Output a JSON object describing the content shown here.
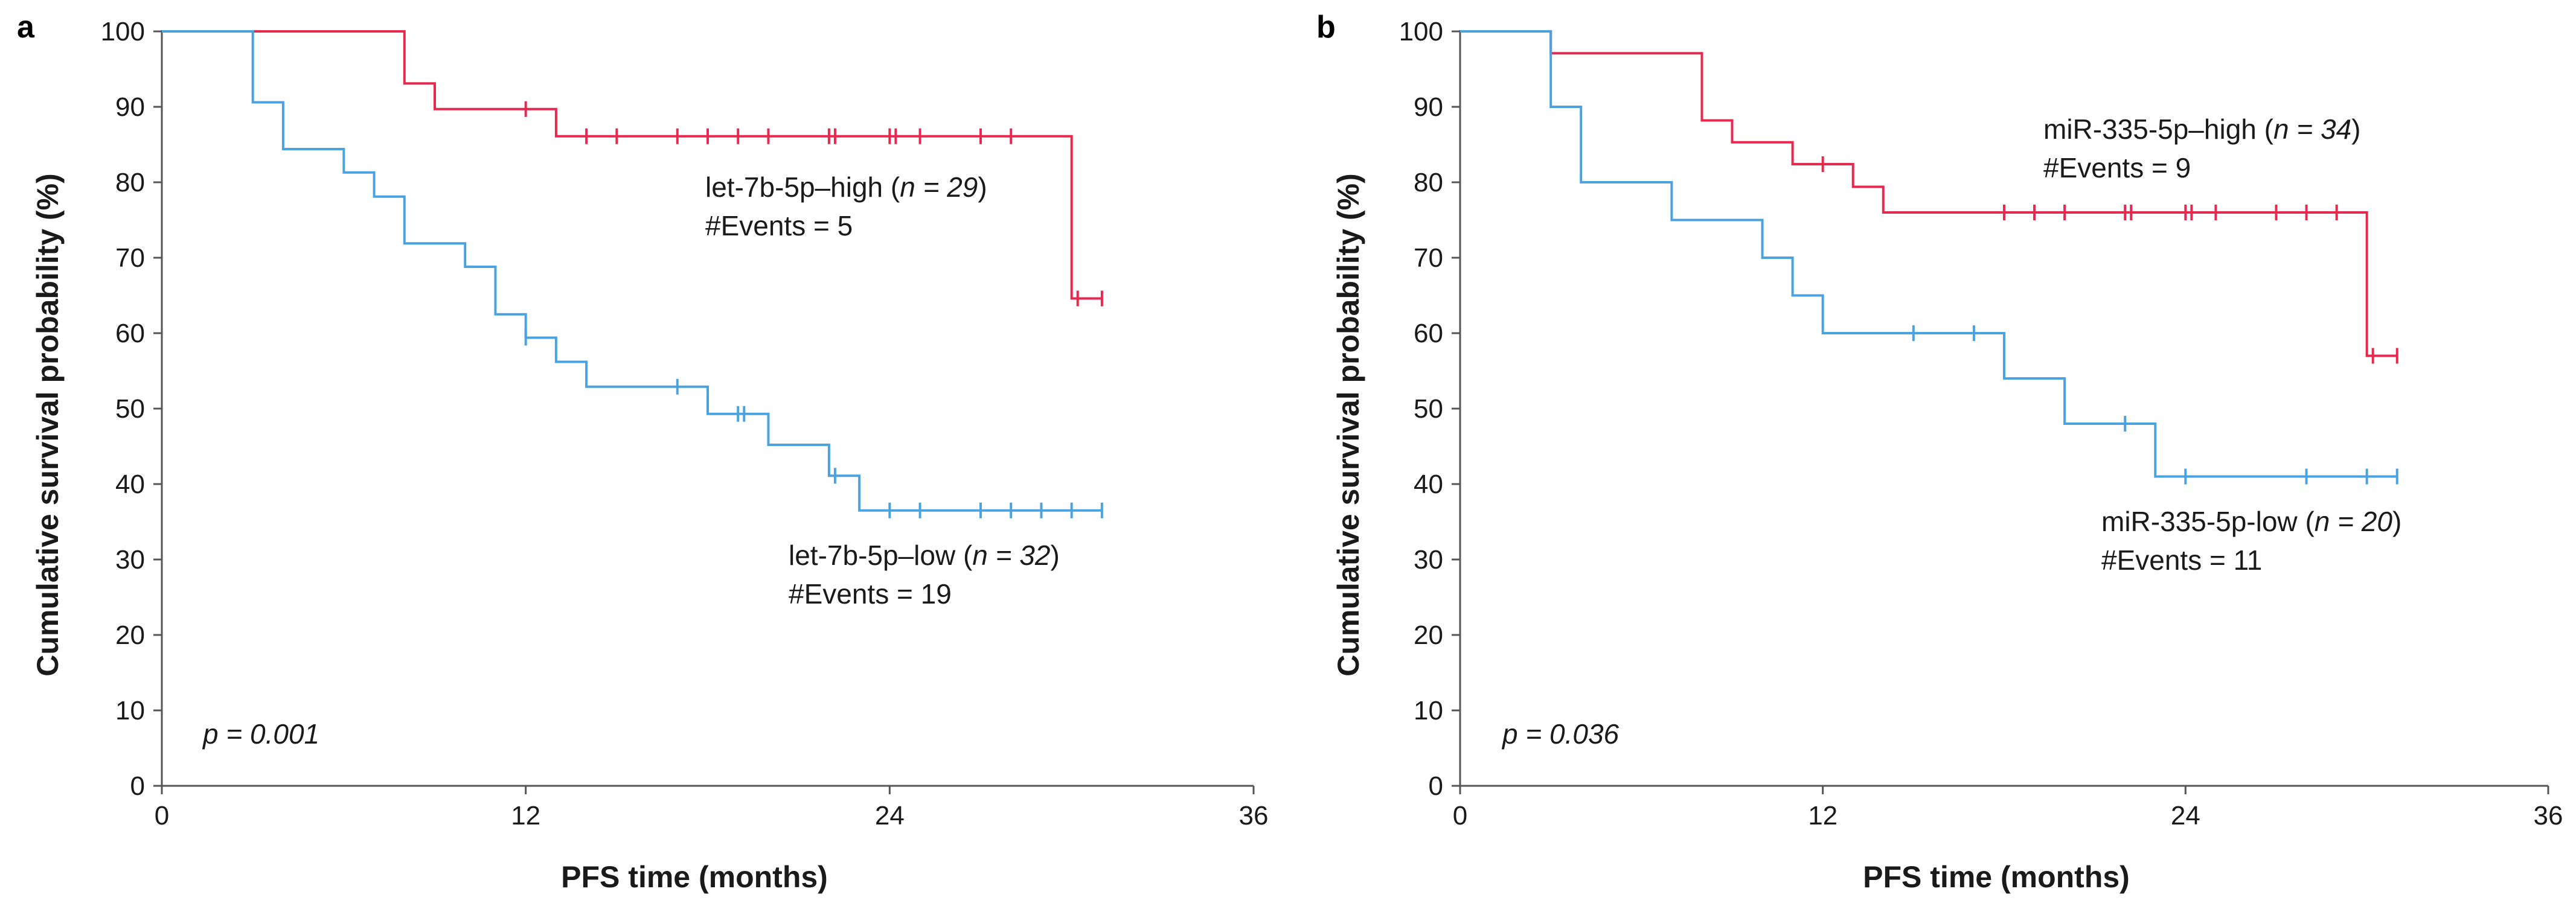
{
  "chart_data": [
    {
      "type": "line",
      "subtype": "kaplan-meier",
      "panel": "a",
      "xlabel": "PFS time (months)",
      "ylabel": "Cumulative survival probability (%)",
      "xlim": [
        0,
        36
      ],
      "ylim": [
        0,
        100
      ],
      "xticks": [
        0,
        12,
        24,
        36
      ],
      "yticks": [
        0,
        10,
        20,
        30,
        40,
        50,
        60,
        70,
        80,
        90,
        100
      ],
      "p_value": "p = 0.001",
      "series": [
        {
          "name": "let-7b-5p–high",
          "color": "#e8294f",
          "n": "29",
          "label": "let-7b-5p–high",
          "n_label": "n = 29",
          "events_label": "#Events = 5",
          "steps": [
            [
              0,
              100
            ],
            [
              8,
              93.1
            ],
            [
              9,
              89.7
            ],
            [
              13,
              86.1
            ],
            [
              30,
              64.6
            ],
            [
              31,
              64.6
            ]
          ],
          "censored": [
            [
              12,
              89.7
            ],
            [
              14,
              86.1
            ],
            [
              15,
              86.1
            ],
            [
              17,
              86.1
            ],
            [
              18,
              86.1
            ],
            [
              19,
              86.1
            ],
            [
              20,
              86.1
            ],
            [
              22,
              86.1
            ],
            [
              22.2,
              86.1
            ],
            [
              24,
              86.1
            ],
            [
              24.2,
              86.1
            ],
            [
              25,
              86.1
            ],
            [
              27,
              86.1
            ],
            [
              28,
              86.1
            ],
            [
              30.2,
              64.6
            ],
            [
              31,
              64.6
            ]
          ]
        },
        {
          "name": "let-7b-5p–low",
          "color": "#4aa3df",
          "n": "32",
          "label": "let-7b-5p–low",
          "n_label": "n = 32",
          "events_label": "#Events = 19",
          "steps": [
            [
              0,
              100
            ],
            [
              3,
              90.6
            ],
            [
              4,
              84.4
            ],
            [
              6,
              81.3
            ],
            [
              7,
              78.1
            ],
            [
              8,
              71.9
            ],
            [
              10,
              68.8
            ],
            [
              11,
              62.5
            ],
            [
              12,
              59.4
            ],
            [
              13,
              56.2
            ],
            [
              14,
              52.9
            ],
            [
              18,
              49.3
            ],
            [
              20,
              45.2
            ],
            [
              22,
              41.1
            ],
            [
              23,
              36.5
            ],
            [
              31,
              36.5
            ]
          ],
          "censored": [
            [
              12,
              59.4
            ],
            [
              17,
              52.9
            ],
            [
              19,
              49.3
            ],
            [
              19.2,
              49.3
            ],
            [
              22.2,
              41.1
            ],
            [
              24,
              36.5
            ],
            [
              25,
              36.5
            ],
            [
              27,
              36.5
            ],
            [
              28,
              36.5
            ],
            [
              29,
              36.5
            ],
            [
              30,
              36.5
            ],
            [
              31,
              36.5
            ]
          ]
        }
      ]
    },
    {
      "type": "line",
      "subtype": "kaplan-meier",
      "panel": "b",
      "xlabel": "PFS time (months)",
      "ylabel": "Cumulative survival probability (%)",
      "xlim": [
        0,
        36
      ],
      "ylim": [
        0,
        100
      ],
      "xticks": [
        0,
        12,
        24,
        36
      ],
      "yticks": [
        0,
        10,
        20,
        30,
        40,
        50,
        60,
        70,
        80,
        90,
        100
      ],
      "p_value": "p = 0.036",
      "series": [
        {
          "name": "miR-335-5p–high",
          "color": "#e8294f",
          "n": "34",
          "label": "miR-335-5p–high",
          "n_label": "n = 34",
          "events_label": "#Events = 9",
          "steps": [
            [
              0,
              100
            ],
            [
              3,
              97.1
            ],
            [
              8,
              88.2
            ],
            [
              9,
              85.3
            ],
            [
              11,
              82.4
            ],
            [
              13,
              79.4
            ],
            [
              14,
              76
            ],
            [
              30,
              57
            ],
            [
              31,
              57
            ]
          ],
          "censored": [
            [
              12,
              82.4
            ],
            [
              18,
              76
            ],
            [
              19,
              76
            ],
            [
              20,
              76
            ],
            [
              22,
              76
            ],
            [
              22.2,
              76
            ],
            [
              24,
              76
            ],
            [
              24.2,
              76
            ],
            [
              25,
              76
            ],
            [
              27,
              76
            ],
            [
              28,
              76
            ],
            [
              29,
              76
            ],
            [
              30.2,
              57
            ],
            [
              31,
              57
            ]
          ]
        },
        {
          "name": "miR-335-5p-low",
          "color": "#4aa3df",
          "n": "20",
          "label": "miR-335-5p-low",
          "n_label": "n = 20",
          "events_label": "#Events = 11",
          "steps": [
            [
              0,
              100
            ],
            [
              3,
              90
            ],
            [
              4,
              80
            ],
            [
              7,
              75
            ],
            [
              10,
              70
            ],
            [
              11,
              65
            ],
            [
              12,
              60
            ],
            [
              18,
              54
            ],
            [
              20,
              48
            ],
            [
              23,
              41
            ],
            [
              31,
              41
            ]
          ],
          "censored": [
            [
              15,
              60
            ],
            [
              17,
              60
            ],
            [
              22,
              48
            ],
            [
              24,
              41
            ],
            [
              28,
              41
            ],
            [
              30,
              41
            ],
            [
              31,
              41
            ]
          ]
        }
      ]
    }
  ]
}
